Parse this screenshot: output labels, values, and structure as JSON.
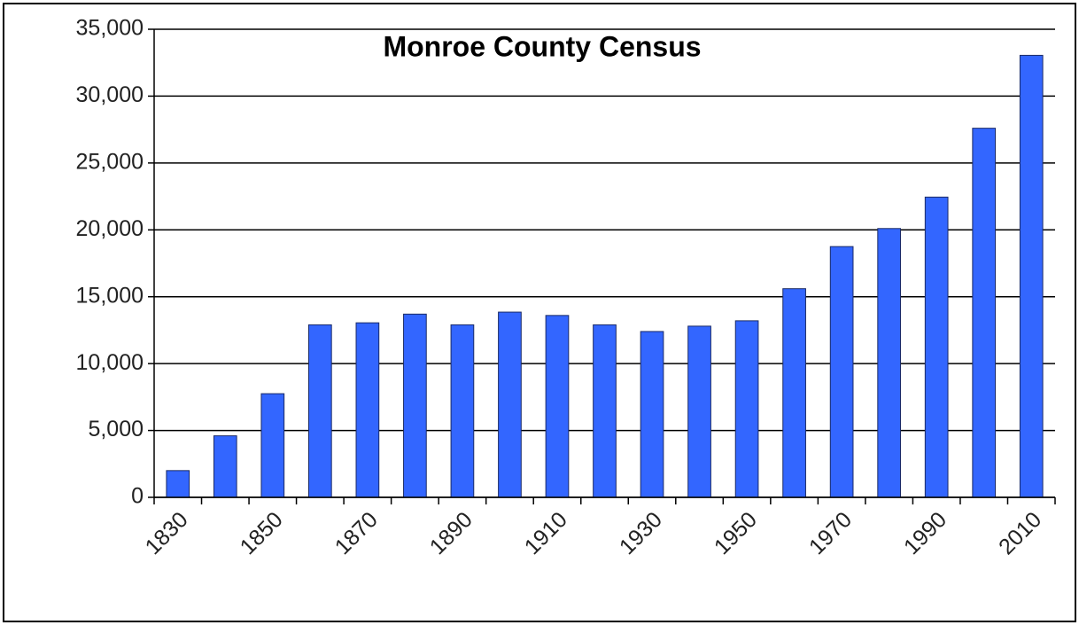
{
  "chart_data": {
    "type": "bar",
    "title": "Monroe County Census",
    "categories": [
      "1830",
      null,
      "1850",
      null,
      "1870",
      null,
      "1890",
      null,
      "1910",
      null,
      "1930",
      null,
      "1950",
      null,
      "1970",
      null,
      "1990",
      null,
      "2010"
    ],
    "values": [
      2000,
      4600,
      7750,
      12900,
      13050,
      13700,
      12900,
      13850,
      13600,
      12900,
      12400,
      12800,
      13200,
      15600,
      18750,
      20100,
      22450,
      27600,
      33050
    ],
    "color": "#3366ff",
    "ylim": [
      0,
      35000
    ],
    "yticks": [
      0,
      {
        "value": 5000,
        "label": "5,000"
      },
      {
        "value": 10000,
        "label": "10,000"
      },
      {
        "value": 15000,
        "label": "15,000"
      },
      {
        "value": 20000,
        "label": "20,000"
      },
      {
        "value": 25000,
        "label": "25,000"
      },
      {
        "value": 30000,
        "label": "30,000"
      },
      {
        "value": 35000,
        "label": "35,000"
      }
    ],
    "grid": true
  }
}
